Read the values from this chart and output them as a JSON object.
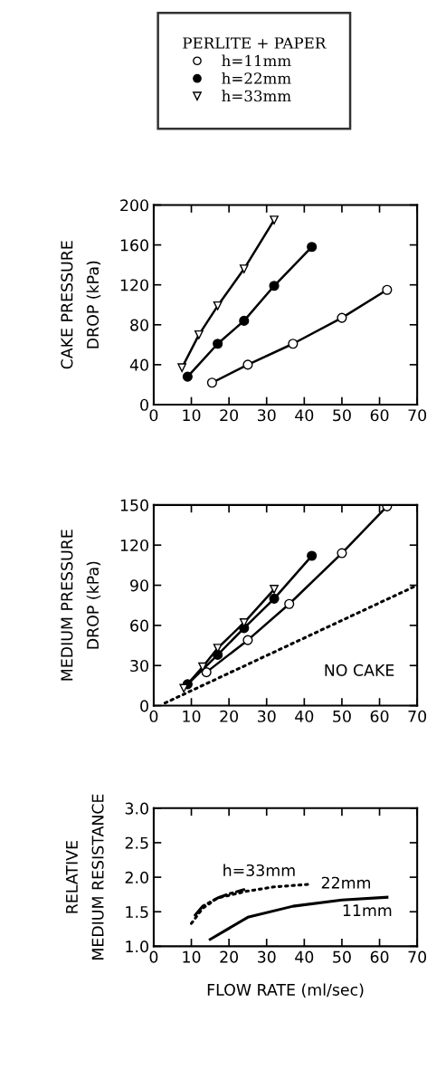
{
  "chart_data": [
    {
      "type": "line",
      "ylabel": "CAKE PRESSURE\nDROP (kPa)",
      "legend": "top",
      "legend_title": "PERLITE + PAPER",
      "xlim": [
        0,
        70
      ],
      "xticks": [
        0,
        10,
        20,
        30,
        40,
        50,
        60,
        70
      ],
      "ylim": [
        0,
        200
      ],
      "yticks": [
        0,
        40,
        80,
        120,
        160,
        200
      ],
      "series": [
        {
          "name": "h=11mm",
          "color": "#000000",
          "marker": "circle",
          "x": [
            15.5,
            25,
            37,
            50,
            62
          ],
          "values": [
            22,
            40,
            61,
            87,
            115
          ]
        },
        {
          "name": "h=22mm",
          "color": "#000000",
          "marker": "circle",
          "x": [
            9,
            17,
            24,
            32,
            42
          ],
          "values": [
            28,
            61,
            84,
            119,
            158
          ]
        },
        {
          "name": "h=33mm",
          "color": "#000000",
          "marker": "triangle",
          "x": [
            7.5,
            12,
            17,
            24,
            32
          ],
          "values": [
            37,
            70,
            99,
            136,
            185
          ]
        }
      ]
    },
    {
      "type": "line",
      "ylabel": "MEDIUM PRESSURE\nDROP (kPa)",
      "xlim": [
        0,
        70
      ],
      "xticks": [
        0,
        10,
        20,
        30,
        40,
        50,
        60,
        70
      ],
      "ylim": [
        0,
        150
      ],
      "yticks": [
        0,
        30,
        60,
        90,
        120,
        150
      ],
      "annotations": [
        "NO CAKE"
      ],
      "series": [
        {
          "color": "#000000",
          "marker": "circle",
          "x": [
            14,
            25,
            36,
            50,
            62
          ],
          "values": [
            25,
            49,
            76,
            114,
            149
          ]
        },
        {
          "color": "#000000",
          "marker": "circle",
          "x": [
            9,
            17,
            24,
            32,
            42
          ],
          "values": [
            16,
            38,
            58,
            80,
            112
          ]
        },
        {
          "color": "#000000",
          "marker": "triangle",
          "x": [
            8,
            13,
            17,
            24,
            32
          ],
          "values": [
            13,
            29,
            43,
            62,
            87
          ]
        },
        {
          "color": "#000000",
          "marker": "none",
          "line_style": "dotted",
          "x": [
            3,
            70
          ],
          "values": [
            2,
            90
          ]
        }
      ]
    },
    {
      "type": "line",
      "ylabel": "RELATIVE\nMEDIUM RESISTANCE",
      "xlabel": "FLOW RATE (ml/sec)",
      "xlim": [
        0,
        70
      ],
      "xticks": [
        0,
        10,
        20,
        30,
        40,
        50,
        60,
        70
      ],
      "ylim": [
        1.0,
        3.0
      ],
      "yticks": [
        {
          "value": 1.0,
          "label": "1.0"
        },
        {
          "value": 1.5,
          "label": "1.5"
        },
        {
          "value": 2.0,
          "label": "2.0"
        },
        {
          "value": 2.5,
          "label": "2.5"
        },
        {
          "value": 3.0,
          "label": "3.0"
        }
      ],
      "annotations": [
        "h=33mm",
        "22mm",
        "11mm"
      ],
      "series": [
        {
          "color": "#000000",
          "marker": "none",
          "line_style": "solid",
          "x": [
            15,
            25,
            37,
            50,
            62
          ],
          "values": [
            1.1,
            1.42,
            1.58,
            1.67,
            1.71
          ]
        },
        {
          "color": "#000000",
          "marker": "none",
          "line_style": "dotted",
          "x": [
            10,
            13,
            17,
            25,
            32,
            42
          ],
          "values": [
            1.33,
            1.55,
            1.7,
            1.8,
            1.86,
            1.9
          ]
        },
        {
          "color": "#000000",
          "marker": "none",
          "line_style": "dashdot",
          "x": [
            11,
            13,
            17,
            20,
            24
          ],
          "values": [
            1.45,
            1.58,
            1.7,
            1.76,
            1.82
          ]
        }
      ]
    }
  ]
}
